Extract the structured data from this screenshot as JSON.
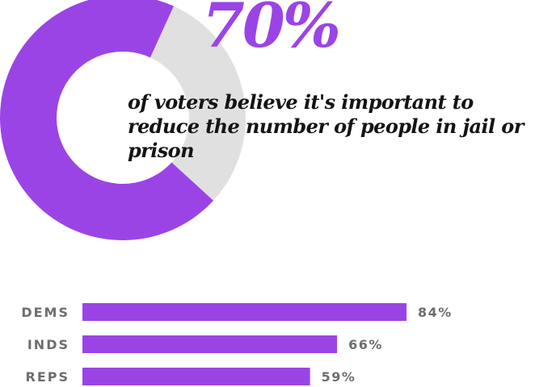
{
  "colors": {
    "accent": "#9b44e6",
    "remainder": "#e0e0e0",
    "headline_text": "#141414",
    "label_text": "#6e6e6e"
  },
  "headline": {
    "percent": "70%",
    "text": "of voters believe it's important to reduce the number of people in jail or prison"
  },
  "chart_data": [
    {
      "type": "pie",
      "variant": "donut",
      "values": [
        70,
        30
      ],
      "value_labels": [
        "70%"
      ],
      "colors": [
        "#9b44e6",
        "#e0e0e0"
      ]
    },
    {
      "type": "bar",
      "orientation": "horizontal",
      "categories": [
        "DEMS",
        "INDS",
        "REPS"
      ],
      "values": [
        84,
        66,
        59
      ],
      "value_labels": [
        "84%",
        "66%",
        "59%"
      ],
      "xlim": [
        0,
        100
      ],
      "grid": false,
      "color": "#9b44e6"
    }
  ]
}
